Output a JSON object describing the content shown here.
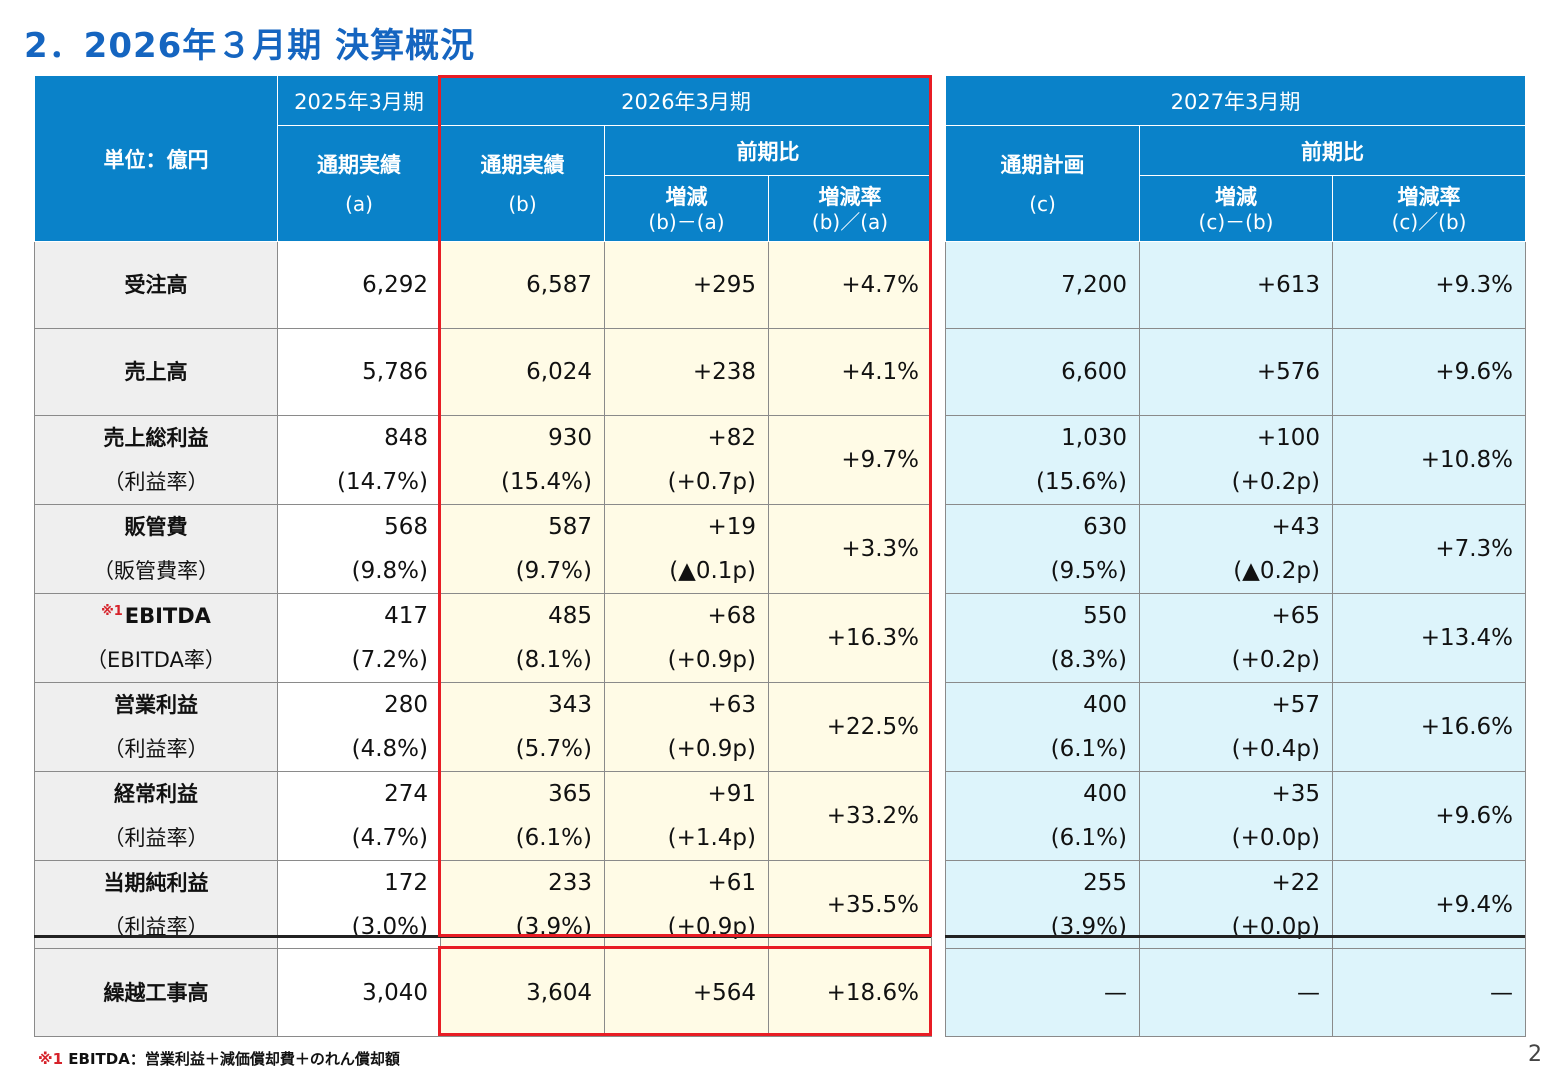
{
  "title": "2．2026年３月期 決算概況",
  "header": {
    "unit": "単位：億円",
    "fy2025": "2025年3月期",
    "fy2026": "2026年3月期",
    "fy2027": "2027年3月期",
    "actual": "通期実績",
    "plan": "通期計画",
    "yoy": "前期比",
    "a": "(a)",
    "b": "(b)",
    "c": "(c)",
    "diff": "増減",
    "rate": "増減率",
    "diff_ba": "(b)－(a)",
    "rate_ba": "(b)／(a)",
    "diff_cb": "(c)－(b)",
    "rate_cb": "(c)／(b)"
  },
  "rows": [
    {
      "label": "受注高",
      "a": "6,292",
      "b": "6,587",
      "d1": "+295",
      "r1": "+4.7%",
      "c": "7,200",
      "d2": "+613",
      "r2": "+9.3%"
    },
    {
      "label": "売上高",
      "a": "5,786",
      "b": "6,024",
      "d1": "+238",
      "r1": "+4.1%",
      "c": "6,600",
      "d2": "+576",
      "r2": "+9.6%"
    },
    {
      "label": "売上総利益",
      "label2": "（利益率）",
      "a": "848",
      "a2": "(14.7%)",
      "b": "930",
      "b2": "(15.4%)",
      "d1": "+82",
      "d1b": "(+0.7p)",
      "r1": "+9.7%",
      "c": "1,030",
      "c2": "(15.6%)",
      "d2": "+100",
      "d2b": "(+0.2p)",
      "r2": "+10.8%"
    },
    {
      "label": "販管費",
      "label2": "（販管費率）",
      "a": "568",
      "a2": "(9.8%)",
      "b": "587",
      "b2": "(9.7%)",
      "d1": "+19",
      "d1b": "(▲0.1p)",
      "r1": "+3.3%",
      "c": "630",
      "c2": "(9.5%)",
      "d2": "+43",
      "d2b": "(▲0.2p)",
      "r2": "+7.3%"
    },
    {
      "label": "EBITDA",
      "label_mark": "※1",
      "label2": "（EBITDA率）",
      "a": "417",
      "a2": "(7.2%)",
      "b": "485",
      "b2": "(8.1%)",
      "d1": "+68",
      "d1b": "(+0.9p)",
      "r1": "+16.3%",
      "c": "550",
      "c2": "(8.3%)",
      "d2": "+65",
      "d2b": "(+0.2p)",
      "r2": "+13.4%"
    },
    {
      "label": "営業利益",
      "label2": "（利益率）",
      "a": "280",
      "a2": "(4.8%)",
      "b": "343",
      "b2": "(5.7%)",
      "d1": "+63",
      "d1b": "(+0.9p)",
      "r1": "+22.5%",
      "c": "400",
      "c2": "(6.1%)",
      "d2": "+57",
      "d2b": "(+0.4p)",
      "r2": "+16.6%"
    },
    {
      "label": "経常利益",
      "label2": "（利益率）",
      "a": "274",
      "a2": "(4.7%)",
      "b": "365",
      "b2": "(6.1%)",
      "d1": "+91",
      "d1b": "(+1.4p)",
      "r1": "+33.2%",
      "c": "400",
      "c2": "(6.1%)",
      "d2": "+35",
      "d2b": "(+0.0p)",
      "r2": "+9.6%"
    },
    {
      "label": "当期純利益",
      "label2": "（利益率）",
      "a": "172",
      "a2": "(3.0%)",
      "b": "233",
      "b2": "(3.9%)",
      "d1": "+61",
      "d1b": "(+0.9p)",
      "r1": "+35.5%",
      "c": "255",
      "c2": "(3.9%)",
      "d2": "+22",
      "d2b": "(+0.0p)",
      "r2": "+9.4%"
    }
  ],
  "backlog": {
    "label": "繰越工事高",
    "a": "3,040",
    "b": "3,604",
    "d1": "+564",
    "r1": "+18.6%",
    "c": "—",
    "d2": "—",
    "r2": "—"
  },
  "footnote": {
    "mark": "※1",
    "text": "EBITDA：営業利益＋減価償却費＋のれん償却額"
  },
  "page_number": "2"
}
